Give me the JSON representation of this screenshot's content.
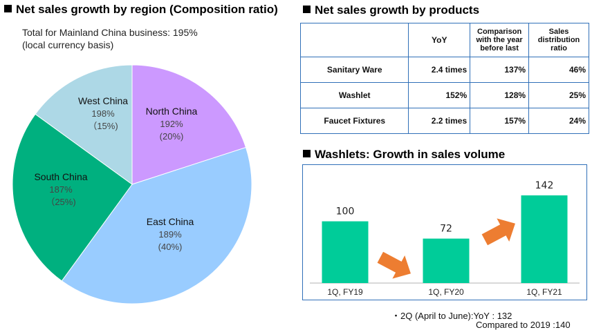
{
  "left_panel": {
    "title": "Net sales growth by region (Composition ratio)",
    "subtitle_line1": "Total for Mainland China business: 195%",
    "subtitle_line2": "(local currency basis)"
  },
  "right_panel": {
    "title": "Net sales growth by products",
    "table": {
      "headers": [
        "",
        "YoY",
        "Comparison with the year before last",
        "Sales distribution ratio"
      ],
      "rows": [
        [
          "Sanitary Ware",
          "2.4 times",
          "137%",
          "46%"
        ],
        [
          "Washlet",
          "152%",
          "128%",
          "25%"
        ],
        [
          "Faucet Fixtures",
          "2.2 times",
          "157%",
          "24%"
        ]
      ]
    }
  },
  "washlet_panel": {
    "title": "Washlets: Growth in sales volume",
    "note_line1": "・2Q (April to June):YoY : 132",
    "note_line2": "Compared to 2019 :140"
  },
  "colors": {
    "north": "#cc99ff",
    "east": "#99ccff",
    "south": "#00b07f",
    "west": "#add8e6",
    "bar": "#00cc99",
    "arrow": "#ed7d31",
    "border": "#2f6fb8"
  },
  "chart_data": [
    {
      "type": "pie",
      "title": "Net sales growth by region (Composition ratio)",
      "slices": [
        {
          "label": "North China",
          "growth": "192%",
          "share_label": "(20%)",
          "share": 20
        },
        {
          "label": "East China",
          "growth": "189%",
          "share_label": "(40%)",
          "share": 40
        },
        {
          "label": "South China",
          "growth": "187%",
          "share_label": "（25%)",
          "share": 25
        },
        {
          "label": "West China",
          "growth": "198%",
          "share_label": "（15%)",
          "share": 15
        }
      ]
    },
    {
      "type": "bar",
      "title": "Washlets: Growth in sales volume",
      "categories": [
        "1Q, FY19",
        "1Q, FY20",
        "1Q, FY21"
      ],
      "values": [
        100,
        72,
        142
      ],
      "ylim": [
        0,
        150
      ]
    }
  ]
}
